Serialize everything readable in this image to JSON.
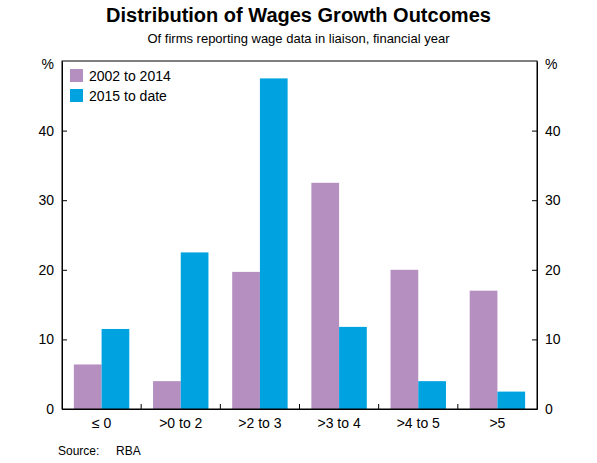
{
  "chart_data": {
    "type": "bar",
    "title": "Distribution of Wages Growth Outcomes",
    "subtitle": "Of firms reporting wage data in liaison, financial year",
    "ylabel": "%",
    "footnote": "Source:     RBA",
    "categories": [
      "≤ 0",
      ">0 to 2",
      ">2 to 3",
      ">3 to 4",
      ">4 to 5",
      ">5"
    ],
    "series": [
      {
        "name": "2002 to 2014",
        "color": "#b48fc0",
        "values": [
          6.4,
          4.0,
          19.7,
          32.5,
          20.0,
          17.0
        ]
      },
      {
        "name": "2015 to date",
        "color": "#00a3e0",
        "values": [
          11.5,
          22.5,
          47.5,
          11.8,
          4.0,
          2.5
        ]
      }
    ],
    "ylim": [
      0,
      50
    ],
    "yticks": [
      0,
      10,
      20,
      30,
      40
    ],
    "grid": false,
    "legend": "upper left"
  }
}
